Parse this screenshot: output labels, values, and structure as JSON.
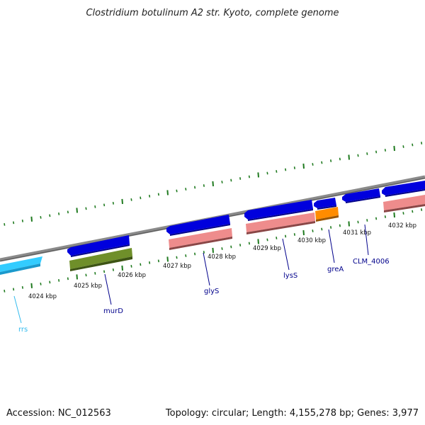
{
  "title": "Clostridium botulinum A2 str. Kyoto, complete genome",
  "footer": {
    "accession": "Accession: NC_012563",
    "topology": "Topology: circular; Length: 4,155,278 bp; Genes: 3,977"
  },
  "colors": {
    "backbone": "#8a8a8a",
    "tick": "#1f7a1f",
    "forward_cds": "#0000dd",
    "reverse_cds": "#ee8c8c",
    "rrna": "#33ccff",
    "green_feature": "#6f8f2a",
    "orange_feature": "#ff8c00",
    "label_dark": "#00008b",
    "label_cyan": "#33bbee"
  },
  "kbp_labels": [
    "4024 kbp",
    "4025 kbp",
    "4026 kbp",
    "4027 kbp",
    "4028 kbp",
    "4029 kbp",
    "4030 kbp",
    "4031 kbp",
    "4032 kbp"
  ],
  "gene_labels": [
    "rrs",
    "murD",
    "glyS",
    "lysS",
    "greA",
    "CLM_4006"
  ]
}
